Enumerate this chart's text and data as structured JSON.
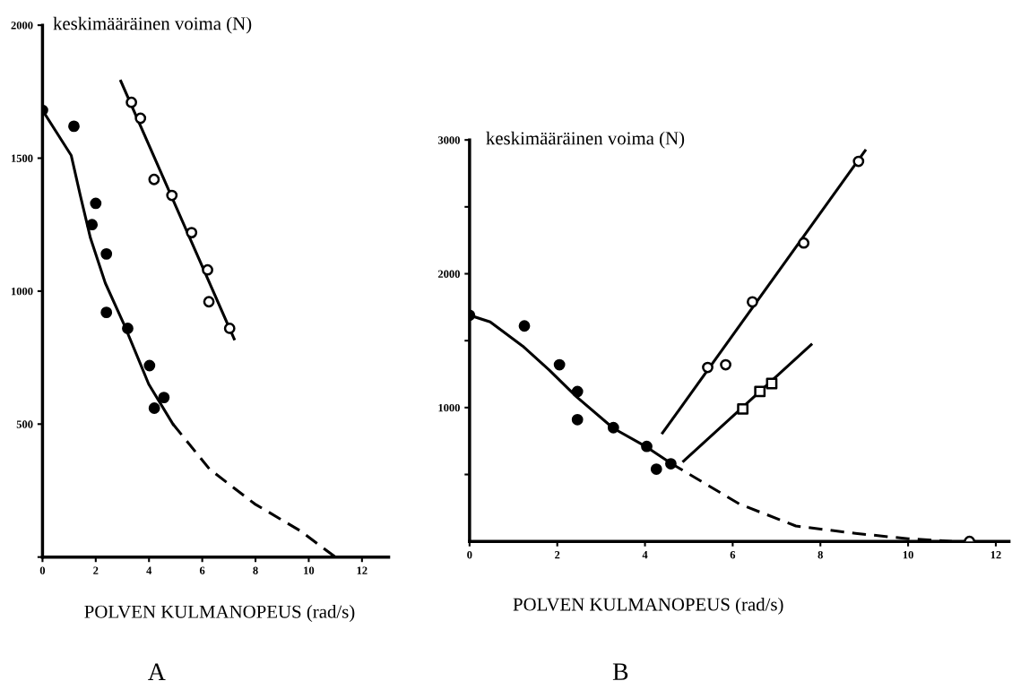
{
  "chart_data": [
    {
      "type": "scatter",
      "ylabel": "keskimääräinen voima (N)",
      "xlabel": "POLVEN KULMANOPEUS (rad/s)",
      "annotations": [
        "A"
      ],
      "xlim": [
        0,
        13
      ],
      "ylim": [
        0,
        2000
      ],
      "xticks": [
        0,
        2,
        4,
        6,
        8,
        10,
        12
      ],
      "yticks": [
        {
          "value": 0,
          "label": null
        },
        500,
        1000,
        1500,
        2000
      ],
      "grid": false,
      "legend": false,
      "series": [
        {
          "type": "scatter",
          "marker": "circle",
          "color": "#000000",
          "x": [
            0,
            1.18,
            2.0,
            1.86,
            2.4,
            2.4,
            3.2,
            4.02,
            4.2,
            4.56
          ],
          "values": [
            1680,
            1620,
            1330,
            1250,
            1140,
            920,
            860,
            720,
            560,
            600
          ]
        },
        {
          "type": "scatter",
          "marker": "circle",
          "color": "#000000",
          "x": [
            3.34,
            3.68,
            4.19,
            4.86,
            5.6,
            6.2,
            6.25,
            7.03
          ],
          "values": [
            1710,
            1650,
            1420,
            1360,
            1220,
            1080,
            960,
            860
          ]
        },
        {
          "type": "line",
          "marker": "none",
          "line_style": "solid",
          "color": "#000000",
          "x": [
            0,
            1.08,
            1.42,
            1.8,
            2.36,
            3.04,
            3.58,
            3.99,
            4.9
          ],
          "values": [
            1680,
            1510,
            1360,
            1200,
            1030,
            880,
            750,
            650,
            500
          ]
        },
        {
          "type": "line",
          "marker": "none",
          "line_style": "dashed",
          "color": "#000000",
          "x": [
            4.9,
            6.28,
            7.97,
            9.66,
            11.0
          ],
          "values": [
            500,
            330,
            200,
            100,
            0
          ]
        },
        {
          "type": "line",
          "marker": "none",
          "line_style": "solid",
          "color": "#000000",
          "x": [
            2.94,
            7.2
          ],
          "values": [
            1790,
            820
          ]
        }
      ]
    },
    {
      "type": "scatter",
      "ylabel": "keskimääräinen voima (N)",
      "xlabel": "POLVEN KULMANOPEUS (rad/s)",
      "annotations": [
        "B"
      ],
      "xlim": [
        0,
        12.3
      ],
      "ylim": [
        0,
        3000
      ],
      "xticks": [
        0,
        2,
        4,
        6,
        8,
        10,
        12
      ],
      "yticks": [
        {
          "value": 500,
          "label": null
        },
        1000,
        {
          "value": 1500,
          "label": null
        },
        2000,
        {
          "value": 2500,
          "label": null
        },
        3000
      ],
      "grid": false,
      "legend": false,
      "series": [
        {
          "type": "scatter",
          "marker": "circle",
          "color": "#000000",
          "x": [
            0,
            1.25,
            2.05,
            2.46,
            2.46,
            3.28,
            4.04,
            4.26,
            4.59
          ],
          "values": [
            1690,
            1610,
            1320,
            1120,
            910,
            850,
            710,
            540,
            580
          ]
        },
        {
          "type": "scatter",
          "marker": "circle",
          "color": "#000000",
          "x": [
            5.43,
            5.84,
            6.45,
            7.62,
            8.87,
            11.4
          ],
          "values": [
            1300,
            1320,
            1790,
            2230,
            2840,
            0
          ]
        },
        {
          "type": "scatter",
          "marker": "square",
          "color": "#000000",
          "x": [
            6.23,
            6.62,
            6.89
          ],
          "values": [
            990,
            1120,
            1180
          ]
        },
        {
          "type": "line",
          "marker": "none",
          "line_style": "solid",
          "color": "#000000",
          "x": [
            0,
            0.47,
            1.21,
            1.82,
            2.44,
            3.28,
            4.04,
            4.59
          ],
          "values": [
            1690,
            1640,
            1460,
            1280,
            1080,
            845,
            705,
            584
          ]
        },
        {
          "type": "line",
          "marker": "none",
          "line_style": "dashed",
          "color": "#000000",
          "x": [
            4.59,
            6.15,
            7.44,
            8.8,
            10.0,
            11.0
          ],
          "values": [
            584,
            280,
            115,
            60,
            20,
            0
          ]
        },
        {
          "type": "line",
          "marker": "none",
          "line_style": "solid",
          "color": "#000000",
          "x": [
            4.4,
            9.02
          ],
          "values": [
            810,
            2920
          ]
        },
        {
          "type": "line",
          "marker": "none",
          "line_style": "solid",
          "color": "#000000",
          "x": [
            4.88,
            7.79
          ],
          "values": [
            600,
            1470
          ]
        }
      ]
    }
  ]
}
